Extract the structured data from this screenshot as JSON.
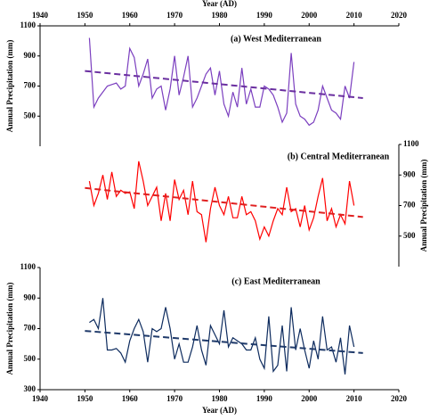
{
  "chart_data": [
    {
      "type": "line",
      "title": "(a) West Mediterranean",
      "xlabel": "Year (AD)",
      "ylabel": "Annual Precipitation (mm)",
      "x_axis_side": "top",
      "y_axis_side": "left",
      "xlim": [
        1940,
        2020
      ],
      "xticks": [
        1940,
        1950,
        1960,
        1970,
        1980,
        1990,
        2000,
        2010,
        2020
      ],
      "ylim": [
        300,
        1100
      ],
      "yticks": [
        500,
        700,
        900,
        1100
      ],
      "x": [
        1951,
        1952,
        1953,
        1954,
        1955,
        1956,
        1957,
        1958,
        1959,
        1960,
        1961,
        1962,
        1963,
        1964,
        1965,
        1966,
        1967,
        1968,
        1969,
        1970,
        1971,
        1972,
        1973,
        1974,
        1975,
        1976,
        1977,
        1978,
        1979,
        1980,
        1981,
        1982,
        1983,
        1984,
        1985,
        1986,
        1987,
        1988,
        1989,
        1990,
        1991,
        1992,
        1993,
        1994,
        1995,
        1996,
        1997,
        1998,
        1999,
        2000,
        2001,
        2002,
        2003,
        2004,
        2005,
        2006,
        2007,
        2008,
        2009,
        2010
      ],
      "series": [
        {
          "color": "#7b3fbf",
          "values": [
            1020,
            560,
            620,
            660,
            700,
            710,
            720,
            680,
            700,
            950,
            890,
            700,
            780,
            880,
            620,
            680,
            700,
            540,
            680,
            900,
            640,
            760,
            900,
            560,
            620,
            700,
            780,
            820,
            640,
            800,
            580,
            500,
            660,
            560,
            820,
            580,
            680,
            560,
            560,
            700,
            680,
            640,
            560,
            460,
            520,
            920,
            580,
            500,
            480,
            440,
            460,
            540,
            700,
            620,
            540,
            520,
            480,
            700,
            620,
            860
          ]
        }
      ],
      "trend": {
        "color": "#6a2fa0",
        "x": [
          1950,
          2012
        ],
        "values": [
          800,
          620
        ]
      }
    },
    {
      "type": "line",
      "title": "(b) Central Mediterranean",
      "ylabel": "Annual Precipitation (mm)",
      "y_axis_side": "right",
      "xlim": [
        1940,
        2020
      ],
      "ylim": [
        300,
        1100
      ],
      "yticks": [
        500,
        700,
        900,
        1100
      ],
      "x": [
        1951,
        1952,
        1953,
        1954,
        1955,
        1956,
        1957,
        1958,
        1959,
        1960,
        1961,
        1962,
        1963,
        1964,
        1965,
        1966,
        1967,
        1968,
        1969,
        1970,
        1971,
        1972,
        1973,
        1974,
        1975,
        1976,
        1977,
        1978,
        1979,
        1980,
        1981,
        1982,
        1983,
        1984,
        1985,
        1986,
        1987,
        1988,
        1989,
        1990,
        1991,
        1992,
        1993,
        1994,
        1995,
        1996,
        1997,
        1998,
        1999,
        2000,
        2001,
        2002,
        2003,
        2004,
        2005,
        2006,
        2007,
        2008,
        2009,
        2010
      ],
      "series": [
        {
          "color": "#ff0000",
          "values": [
            860,
            700,
            780,
            900,
            740,
            920,
            760,
            800,
            780,
            790,
            680,
            990,
            860,
            700,
            760,
            820,
            600,
            780,
            600,
            870,
            740,
            800,
            640,
            860,
            660,
            640,
            460,
            680,
            820,
            700,
            640,
            760,
            620,
            620,
            760,
            640,
            660,
            600,
            480,
            560,
            500,
            600,
            680,
            640,
            820,
            660,
            680,
            560,
            700,
            540,
            620,
            760,
            880,
            600,
            680,
            560,
            640,
            580,
            860,
            700
          ]
        }
      ],
      "trend": {
        "color": "#e02020",
        "x": [
          1950,
          2012
        ],
        "values": [
          815,
          625
        ]
      }
    },
    {
      "type": "line",
      "title": "(c) East Mediterranean",
      "xlabel": "Year (AD)",
      "ylabel": "Annual Precipitation (mm)",
      "x_axis_side": "bottom",
      "y_axis_side": "left",
      "xlim": [
        1940,
        2020
      ],
      "xticks": [
        1940,
        1950,
        1960,
        1970,
        1980,
        1990,
        2000,
        2010,
        2020
      ],
      "ylim": [
        300,
        1100
      ],
      "yticks": [
        300,
        500,
        700,
        900,
        1100
      ],
      "x": [
        1951,
        1952,
        1953,
        1954,
        1955,
        1956,
        1957,
        1958,
        1959,
        1960,
        1961,
        1962,
        1963,
        1964,
        1965,
        1966,
        1967,
        1968,
        1969,
        1970,
        1971,
        1972,
        1973,
        1974,
        1975,
        1976,
        1977,
        1978,
        1979,
        1980,
        1981,
        1982,
        1983,
        1984,
        1985,
        1986,
        1987,
        1988,
        1989,
        1990,
        1991,
        1992,
        1993,
        1994,
        1995,
        1996,
        1997,
        1998,
        1999,
        2000,
        2001,
        2002,
        2003,
        2004,
        2005,
        2006,
        2007,
        2008,
        2009,
        2010
      ],
      "series": [
        {
          "color": "#0d2b5e",
          "values": [
            740,
            760,
            700,
            900,
            560,
            560,
            570,
            540,
            480,
            620,
            700,
            760,
            680,
            480,
            700,
            680,
            700,
            840,
            700,
            500,
            600,
            480,
            480,
            580,
            720,
            560,
            460,
            720,
            660,
            600,
            820,
            580,
            640,
            620,
            600,
            560,
            560,
            640,
            500,
            440,
            780,
            420,
            460,
            720,
            420,
            840,
            560,
            700,
            560,
            440,
            620,
            500,
            780,
            560,
            580,
            480,
            640,
            400,
            720,
            580
          ]
        }
      ],
      "trend": {
        "color": "#1f3a6a",
        "x": [
          1950,
          2012
        ],
        "values": [
          685,
          540
        ]
      }
    }
  ]
}
